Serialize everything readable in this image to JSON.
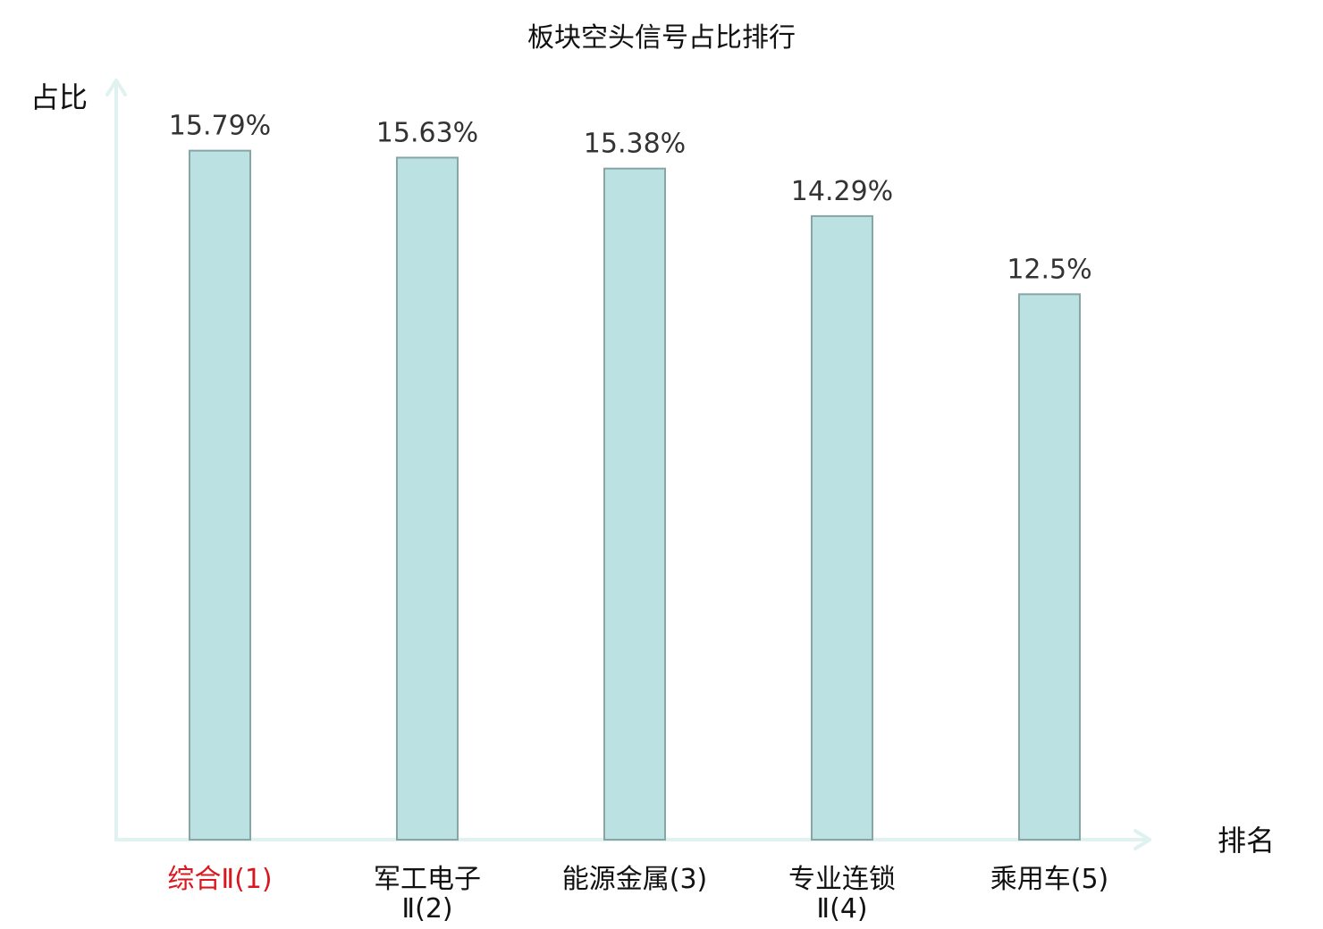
{
  "chart_data": {
    "type": "bar",
    "title": "板块空头信号占比排行",
    "xlabel": "排名",
    "ylabel": "占比",
    "categories": [
      [
        "综合Ⅱ(1)"
      ],
      [
        "军工电子",
        "Ⅱ(2)"
      ],
      [
        "能源金属(3)"
      ],
      [
        "专业连锁",
        "Ⅱ(4)"
      ],
      [
        "乘用车(5)"
      ]
    ],
    "values": [
      15.79,
      15.63,
      15.38,
      14.29,
      12.5
    ],
    "value_labels": [
      "15.79%",
      "15.63%",
      "15.38%",
      "14.29%",
      "12.5%"
    ],
    "highlight_index": 0,
    "ylim": [
      0,
      17.4
    ],
    "grid": false,
    "legend": "none"
  },
  "colors": {
    "bar_fill": "#bce1e2",
    "bar_stroke": "#86a5a4",
    "axis": "#dff2ef",
    "highlight_label": "#d8181e"
  }
}
